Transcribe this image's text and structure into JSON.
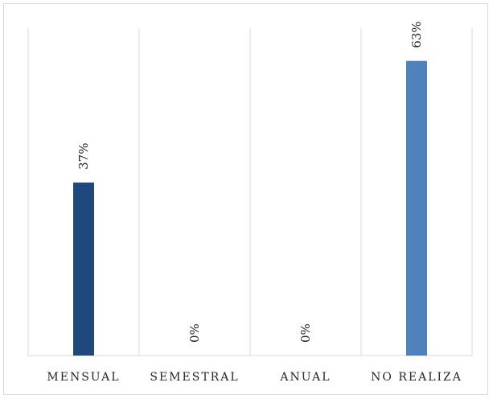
{
  "chart_data": {
    "type": "bar",
    "categories": [
      "MENSUAL",
      "SEMESTRAL",
      "ANUAL",
      "NO REALIZA"
    ],
    "values": [
      37,
      0,
      0,
      63
    ],
    "data_labels": [
      "37%",
      "0%",
      "0%",
      "63%"
    ],
    "value_unit": "%",
    "ylim": [
      0,
      70
    ],
    "grid": "vertical",
    "legend": "none",
    "colors": [
      "#1f497d",
      "#1f497d",
      "#1f497d",
      "#4f81bd"
    ],
    "title": "",
    "xlabel": "",
    "ylabel": ""
  }
}
